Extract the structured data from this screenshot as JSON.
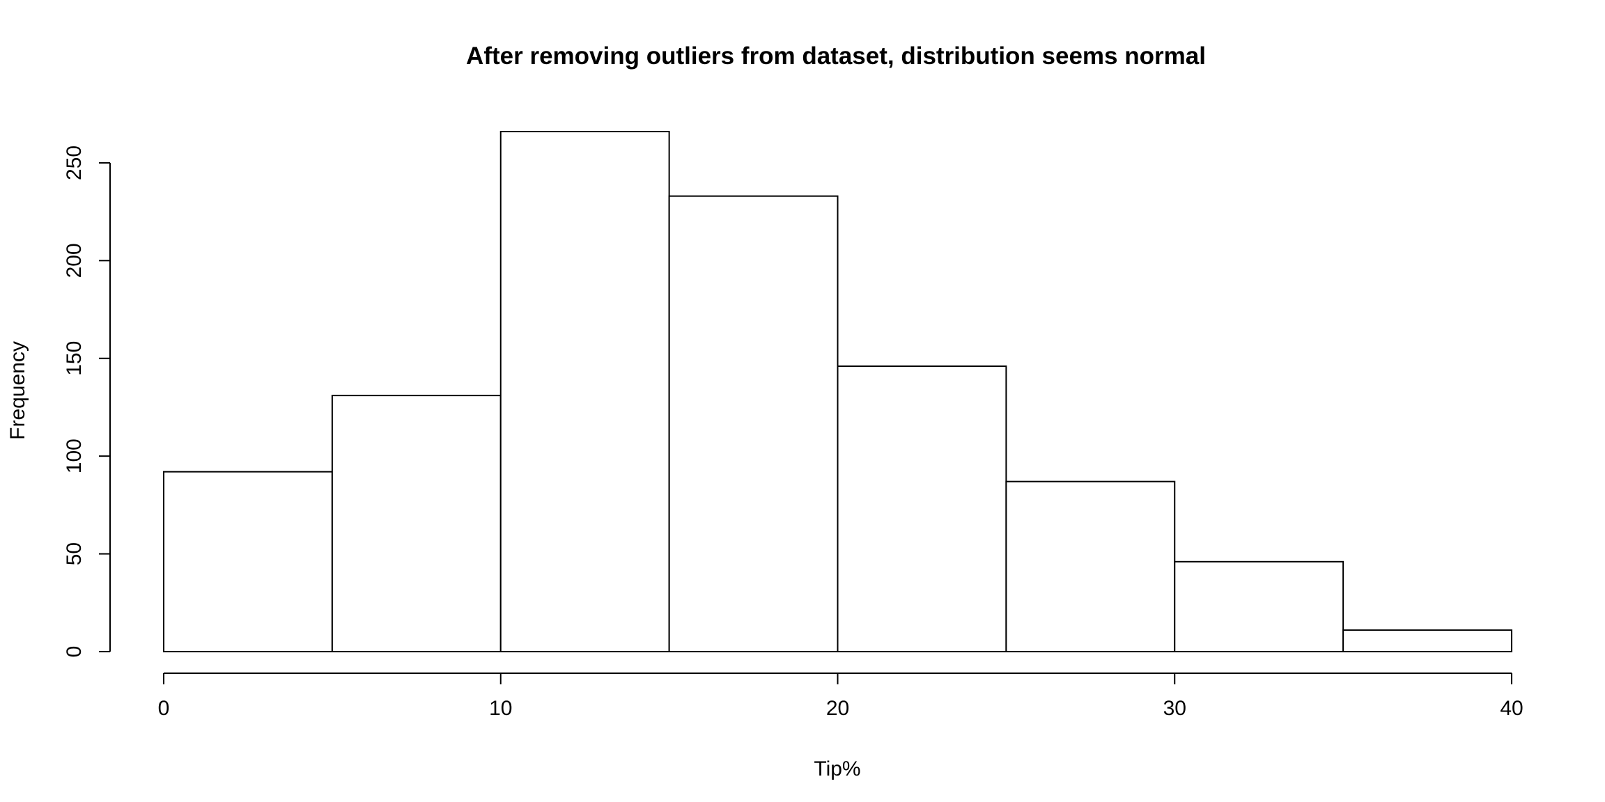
{
  "chart_data": {
    "type": "bar",
    "subtype": "histogram",
    "title": "After removing outliers from dataset, distribution seems normal",
    "xlabel": "Tip%",
    "ylabel": "Frequency",
    "bins": [
      {
        "start": 0,
        "end": 5,
        "value": 92
      },
      {
        "start": 5,
        "end": 10,
        "value": 131
      },
      {
        "start": 10,
        "end": 15,
        "value": 266
      },
      {
        "start": 15,
        "end": 20,
        "value": 233
      },
      {
        "start": 20,
        "end": 25,
        "value": 146
      },
      {
        "start": 25,
        "end": 30,
        "value": 87
      },
      {
        "start": 30,
        "end": 35,
        "value": 46
      },
      {
        "start": 35,
        "end": 40,
        "value": 11
      }
    ],
    "xlim": [
      0,
      40
    ],
    "ylim": [
      0,
      266
    ],
    "xticks": [
      0,
      10,
      20,
      30,
      40
    ],
    "yticks": [
      0,
      50,
      100,
      150,
      200,
      250
    ],
    "grid": false,
    "colors": {
      "bar_fill": "#ffffff",
      "bar_stroke": "#000000"
    }
  }
}
